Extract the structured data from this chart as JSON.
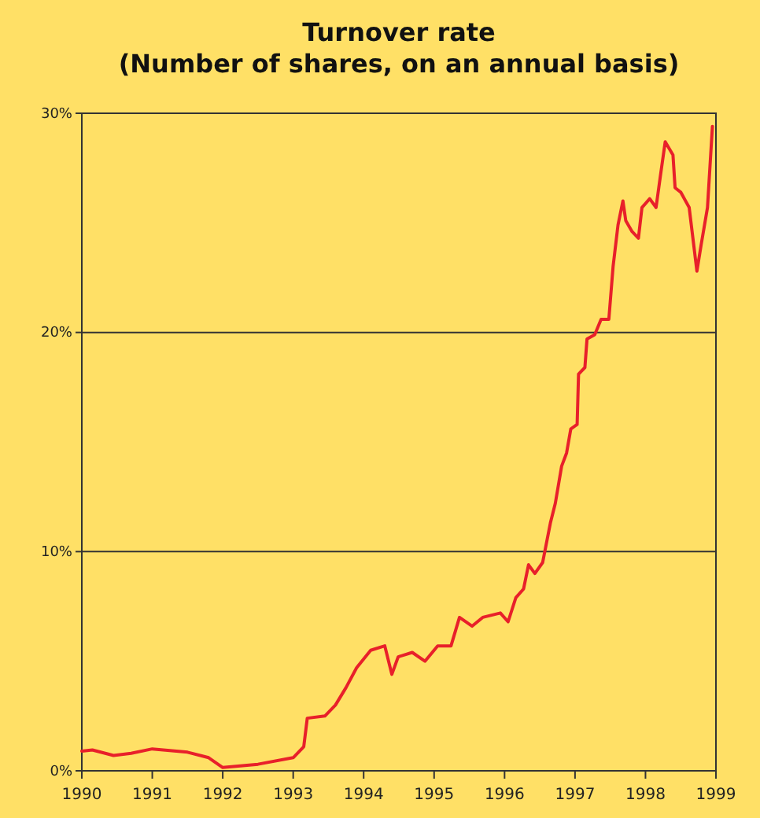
{
  "chart_data": {
    "type": "line",
    "title": "Turnover rate\n(Number of shares, on an annual basis)",
    "x": [
      1990.0,
      1990.15,
      1990.45,
      1990.7,
      1991.0,
      1991.5,
      1991.8,
      1992.0,
      1992.5,
      1993.0,
      1993.15,
      1993.2,
      1993.45,
      1993.6,
      1993.75,
      1993.9,
      1994.1,
      1994.3,
      1994.4,
      1994.49,
      1994.69,
      1994.87,
      1995.05,
      1995.24,
      1995.36,
      1995.54,
      1995.69,
      1995.94,
      1996.05,
      1996.16,
      1996.27,
      1996.34,
      1996.43,
      1996.54,
      1996.65,
      1996.72,
      1996.81,
      1996.88,
      1996.94,
      1997.03,
      1997.05,
      1997.14,
      1997.17,
      1997.28,
      1997.37,
      1997.48,
      1997.54,
      1997.61,
      1997.68,
      1997.72,
      1997.81,
      1997.9,
      1997.95,
      1998.06,
      1998.15,
      1998.21,
      1998.28,
      1998.39,
      1998.42,
      1998.5,
      1998.62,
      1998.73,
      1998.79,
      1998.88,
      1998.95
    ],
    "series": [
      {
        "color": "#e8202a",
        "values": [
          0.9,
          0.95,
          0.7,
          0.8,
          1.0,
          0.85,
          0.6,
          0.15,
          0.3,
          0.6,
          1.1,
          2.4,
          2.5,
          3.0,
          3.8,
          4.7,
          5.5,
          5.7,
          4.4,
          5.2,
          5.4,
          5.0,
          5.7,
          5.7,
          7.0,
          6.6,
          7.0,
          7.2,
          6.8,
          7.9,
          8.3,
          9.4,
          9.0,
          9.5,
          11.3,
          12.2,
          13.9,
          14.5,
          15.6,
          15.8,
          18.1,
          18.4,
          19.7,
          19.9,
          20.6,
          20.6,
          23.0,
          24.9,
          26.0,
          25.1,
          24.6,
          24.3,
          25.7,
          26.1,
          25.7,
          27.1,
          28.7,
          28.1,
          26.6,
          26.4,
          25.7,
          22.8,
          24.0,
          25.7,
          29.4
        ]
      }
    ],
    "xlim": [
      1990,
      1999
    ],
    "xticks": [
      1990,
      1991,
      1992,
      1993,
      1994,
      1995,
      1996,
      1997,
      1998,
      1999
    ],
    "ylim": [
      0,
      30
    ],
    "yticks": [
      {
        "value": 0,
        "label": "0%"
      },
      {
        "value": 10,
        "label": "10%"
      },
      {
        "value": 20,
        "label": "20%"
      },
      {
        "value": 30,
        "label": "30%"
      }
    ],
    "grid": "y",
    "marker": "none",
    "line_style": "solid"
  }
}
